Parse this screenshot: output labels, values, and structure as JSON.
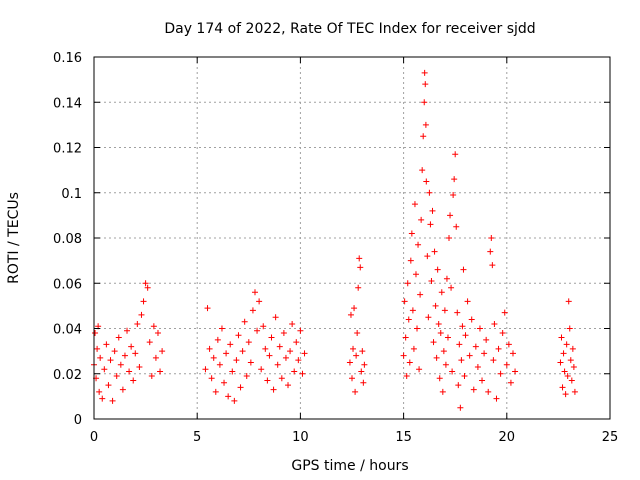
{
  "chart_data": {
    "type": "scatter",
    "title": "Day 174 of 2022, Rate Of TEC Index for receiver sjdd",
    "xlabel": "GPS time / hours",
    "ylabel": "ROTI / TECUs",
    "xlim": [
      0,
      25
    ],
    "ylim": [
      0,
      0.16
    ],
    "xticks": [
      0,
      5,
      10,
      15,
      20,
      25
    ],
    "xtick_labels": [
      "0",
      "5",
      "10",
      "15",
      "20",
      "25"
    ],
    "yticks": [
      0,
      0.02,
      0.04,
      0.06,
      0.08,
      0.1,
      0.12,
      0.14,
      0.16
    ],
    "ytick_labels": [
      "0",
      "0.02",
      "0.04",
      "0.06",
      "0.08",
      "0.1",
      "0.12",
      "0.14",
      "0.16"
    ],
    "grid": true,
    "marker": "+",
    "color": "#ff0000",
    "series": [
      {
        "values_note": "",
        "points": [
          [
            0.0,
            0.024
          ],
          [
            0.05,
            0.038
          ],
          [
            0.1,
            0.018
          ],
          [
            0.15,
            0.031
          ],
          [
            0.2,
            0.041
          ],
          [
            0.25,
            0.012
          ],
          [
            0.3,
            0.027
          ],
          [
            0.4,
            0.009
          ],
          [
            0.5,
            0.022
          ],
          [
            0.6,
            0.033
          ],
          [
            0.7,
            0.015
          ],
          [
            0.8,
            0.026
          ],
          [
            0.9,
            0.008
          ],
          [
            1.0,
            0.03
          ],
          [
            1.1,
            0.019
          ],
          [
            1.2,
            0.036
          ],
          [
            1.3,
            0.024
          ],
          [
            1.4,
            0.013
          ],
          [
            1.5,
            0.028
          ],
          [
            1.6,
            0.039
          ],
          [
            1.7,
            0.021
          ],
          [
            1.8,
            0.032
          ],
          [
            1.9,
            0.017
          ],
          [
            2.0,
            0.029
          ],
          [
            2.1,
            0.042
          ],
          [
            2.2,
            0.023
          ],
          [
            2.3,
            0.046
          ],
          [
            2.4,
            0.052
          ],
          [
            2.5,
            0.06
          ],
          [
            2.6,
            0.058
          ],
          [
            2.7,
            0.034
          ],
          [
            2.8,
            0.019
          ],
          [
            2.9,
            0.041
          ],
          [
            3.0,
            0.027
          ],
          [
            3.1,
            0.038
          ],
          [
            3.2,
            0.021
          ],
          [
            3.3,
            0.03
          ],
          [
            5.4,
            0.022
          ],
          [
            5.5,
            0.049
          ],
          [
            5.6,
            0.031
          ],
          [
            5.7,
            0.018
          ],
          [
            5.8,
            0.027
          ],
          [
            5.9,
            0.012
          ],
          [
            6.0,
            0.035
          ],
          [
            6.1,
            0.024
          ],
          [
            6.2,
            0.04
          ],
          [
            6.3,
            0.016
          ],
          [
            6.4,
            0.029
          ],
          [
            6.5,
            0.01
          ],
          [
            6.6,
            0.033
          ],
          [
            6.7,
            0.021
          ],
          [
            6.8,
            0.008
          ],
          [
            6.9,
            0.026
          ],
          [
            7.0,
            0.037
          ],
          [
            7.1,
            0.014
          ],
          [
            7.2,
            0.03
          ],
          [
            7.3,
            0.043
          ],
          [
            7.4,
            0.019
          ],
          [
            7.5,
            0.034
          ],
          [
            7.6,
            0.025
          ],
          [
            7.7,
            0.048
          ],
          [
            7.8,
            0.056
          ],
          [
            7.9,
            0.039
          ],
          [
            8.0,
            0.052
          ],
          [
            8.1,
            0.022
          ],
          [
            8.2,
            0.041
          ],
          [
            8.3,
            0.031
          ],
          [
            8.4,
            0.017
          ],
          [
            8.5,
            0.028
          ],
          [
            8.6,
            0.036
          ],
          [
            8.7,
            0.013
          ],
          [
            8.8,
            0.045
          ],
          [
            8.9,
            0.024
          ],
          [
            9.0,
            0.032
          ],
          [
            9.1,
            0.018
          ],
          [
            9.2,
            0.038
          ],
          [
            9.3,
            0.027
          ],
          [
            9.4,
            0.015
          ],
          [
            9.5,
            0.03
          ],
          [
            9.6,
            0.042
          ],
          [
            9.7,
            0.021
          ],
          [
            9.8,
            0.034
          ],
          [
            9.9,
            0.026
          ],
          [
            10.0,
            0.039
          ],
          [
            10.1,
            0.02
          ],
          [
            10.2,
            0.029
          ],
          [
            12.4,
            0.025
          ],
          [
            12.45,
            0.046
          ],
          [
            12.5,
            0.018
          ],
          [
            12.55,
            0.031
          ],
          [
            12.6,
            0.049
          ],
          [
            12.65,
            0.012
          ],
          [
            12.7,
            0.028
          ],
          [
            12.75,
            0.038
          ],
          [
            12.8,
            0.058
          ],
          [
            12.85,
            0.071
          ],
          [
            12.9,
            0.067
          ],
          [
            12.95,
            0.021
          ],
          [
            13.0,
            0.03
          ],
          [
            13.05,
            0.016
          ],
          [
            13.1,
            0.024
          ],
          [
            15.0,
            0.028
          ],
          [
            15.05,
            0.052
          ],
          [
            15.1,
            0.036
          ],
          [
            15.15,
            0.019
          ],
          [
            15.2,
            0.06
          ],
          [
            15.25,
            0.044
          ],
          [
            15.3,
            0.025
          ],
          [
            15.35,
            0.07
          ],
          [
            15.4,
            0.082
          ],
          [
            15.45,
            0.048
          ],
          [
            15.5,
            0.031
          ],
          [
            15.55,
            0.095
          ],
          [
            15.6,
            0.064
          ],
          [
            15.65,
            0.04
          ],
          [
            15.7,
            0.077
          ],
          [
            15.75,
            0.022
          ],
          [
            15.8,
            0.055
          ],
          [
            15.85,
            0.088
          ],
          [
            15.9,
            0.11
          ],
          [
            15.95,
            0.125
          ],
          [
            16.0,
            0.14
          ],
          [
            16.02,
            0.153
          ],
          [
            16.05,
            0.148
          ],
          [
            16.08,
            0.13
          ],
          [
            16.1,
            0.105
          ],
          [
            16.15,
            0.072
          ],
          [
            16.2,
            0.045
          ],
          [
            16.25,
            0.1
          ],
          [
            16.3,
            0.086
          ],
          [
            16.35,
            0.061
          ],
          [
            16.4,
            0.092
          ],
          [
            16.45,
            0.034
          ],
          [
            16.5,
            0.074
          ],
          [
            16.55,
            0.05
          ],
          [
            16.6,
            0.027
          ],
          [
            16.65,
            0.066
          ],
          [
            16.7,
            0.042
          ],
          [
            16.75,
            0.018
          ],
          [
            16.8,
            0.038
          ],
          [
            16.85,
            0.056
          ],
          [
            16.9,
            0.012
          ],
          [
            16.95,
            0.03
          ],
          [
            17.0,
            0.048
          ],
          [
            17.05,
            0.024
          ],
          [
            17.1,
            0.062
          ],
          [
            17.15,
            0.036
          ],
          [
            17.2,
            0.08
          ],
          [
            17.25,
            0.09
          ],
          [
            17.3,
            0.058
          ],
          [
            17.35,
            0.021
          ],
          [
            17.4,
            0.099
          ],
          [
            17.45,
            0.106
          ],
          [
            17.5,
            0.117
          ],
          [
            17.55,
            0.085
          ],
          [
            17.6,
            0.047
          ],
          [
            17.65,
            0.015
          ],
          [
            17.7,
            0.033
          ],
          [
            17.75,
            0.005
          ],
          [
            17.8,
            0.026
          ],
          [
            17.85,
            0.041
          ],
          [
            17.9,
            0.066
          ],
          [
            17.95,
            0.019
          ],
          [
            18.0,
            0.037
          ],
          [
            18.1,
            0.052
          ],
          [
            18.2,
            0.028
          ],
          [
            18.3,
            0.044
          ],
          [
            18.4,
            0.013
          ],
          [
            18.5,
            0.032
          ],
          [
            18.6,
            0.023
          ],
          [
            18.7,
            0.04
          ],
          [
            18.8,
            0.017
          ],
          [
            18.9,
            0.029
          ],
          [
            19.0,
            0.035
          ],
          [
            19.1,
            0.012
          ],
          [
            19.2,
            0.074
          ],
          [
            19.25,
            0.08
          ],
          [
            19.3,
            0.068
          ],
          [
            19.35,
            0.026
          ],
          [
            19.4,
            0.042
          ],
          [
            19.5,
            0.009
          ],
          [
            19.6,
            0.031
          ],
          [
            19.7,
            0.02
          ],
          [
            19.8,
            0.038
          ],
          [
            19.9,
            0.047
          ],
          [
            20.0,
            0.024
          ],
          [
            20.1,
            0.033
          ],
          [
            20.2,
            0.016
          ],
          [
            20.3,
            0.029
          ],
          [
            20.4,
            0.021
          ],
          [
            22.6,
            0.025
          ],
          [
            22.65,
            0.036
          ],
          [
            22.7,
            0.014
          ],
          [
            22.75,
            0.029
          ],
          [
            22.8,
            0.021
          ],
          [
            22.85,
            0.011
          ],
          [
            22.9,
            0.033
          ],
          [
            22.95,
            0.019
          ],
          [
            23.0,
            0.052
          ],
          [
            23.05,
            0.04
          ],
          [
            23.1,
            0.026
          ],
          [
            23.15,
            0.017
          ],
          [
            23.2,
            0.031
          ],
          [
            23.25,
            0.023
          ],
          [
            23.3,
            0.012
          ]
        ]
      }
    ]
  }
}
